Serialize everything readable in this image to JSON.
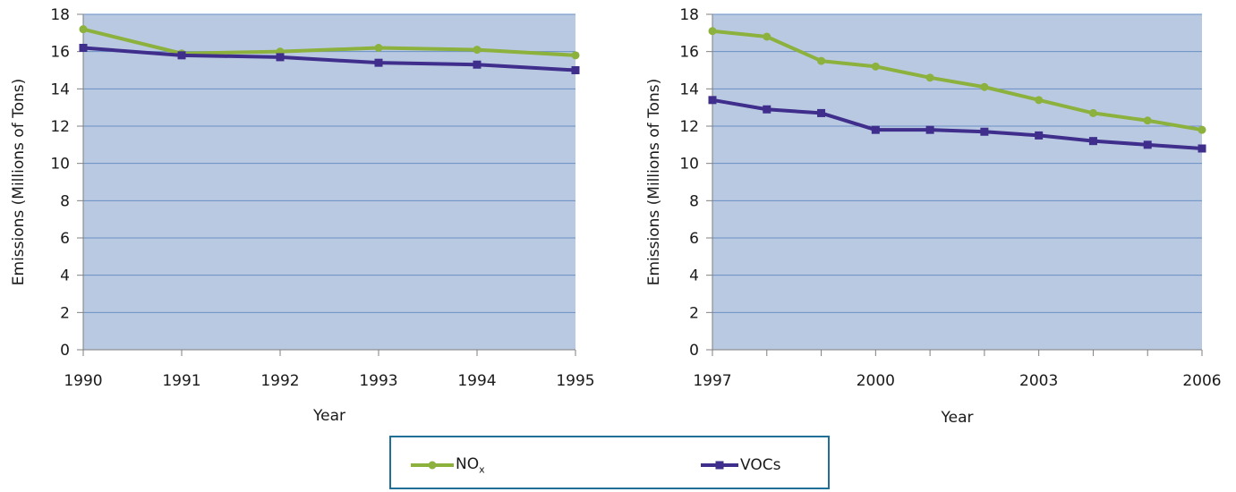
{
  "colors": {
    "plot_bg": "#b9c9e2",
    "grid": "#6a8fc4",
    "axis": "#7f7f7f",
    "nox": "#8cb13d",
    "vocs": "#3f2e8c",
    "legend_border": "#1f6f98"
  },
  "legend": {
    "nox_main": "NO",
    "nox_sub": "x",
    "vocs": "VOCs"
  },
  "chart_data": [
    {
      "type": "line",
      "xlabel": "Year",
      "ylabel": "Emissions (Millions of Tons)",
      "ylim": [
        0,
        18
      ],
      "yticks": [
        0,
        2,
        4,
        6,
        8,
        10,
        12,
        14,
        16,
        18
      ],
      "grid": true,
      "x": [
        "1990",
        "1991",
        "1992",
        "1993",
        "1994",
        "1995"
      ],
      "series": [
        {
          "name": "NOx",
          "marker": "circle",
          "values": [
            17.2,
            15.9,
            16.0,
            16.2,
            16.1,
            15.8
          ]
        },
        {
          "name": "VOCs",
          "marker": "square",
          "values": [
            16.2,
            15.8,
            15.7,
            15.4,
            15.3,
            15.0
          ]
        }
      ]
    },
    {
      "type": "line",
      "xlabel": "Year",
      "ylabel": "Emissions (Millions of Tons)",
      "ylim": [
        0,
        18
      ],
      "yticks": [
        0,
        2,
        4,
        6,
        8,
        10,
        12,
        14,
        16,
        18
      ],
      "grid": true,
      "x": [
        "1997",
        "1998",
        "1999",
        "2000",
        "2001",
        "2002",
        "2003",
        "2004",
        "2005",
        "2006"
      ],
      "xtick_labels": [
        "1997",
        "",
        "",
        "2000",
        "",
        "",
        "2003",
        "",
        "",
        "2006"
      ],
      "series": [
        {
          "name": "NOx",
          "marker": "circle",
          "values": [
            17.1,
            16.8,
            15.5,
            15.2,
            14.6,
            14.1,
            13.4,
            12.7,
            12.3,
            11.8
          ]
        },
        {
          "name": "VOCs",
          "marker": "square",
          "values": [
            13.4,
            12.9,
            12.7,
            11.8,
            11.8,
            11.7,
            11.5,
            11.2,
            11.0,
            10.8
          ]
        }
      ]
    }
  ]
}
